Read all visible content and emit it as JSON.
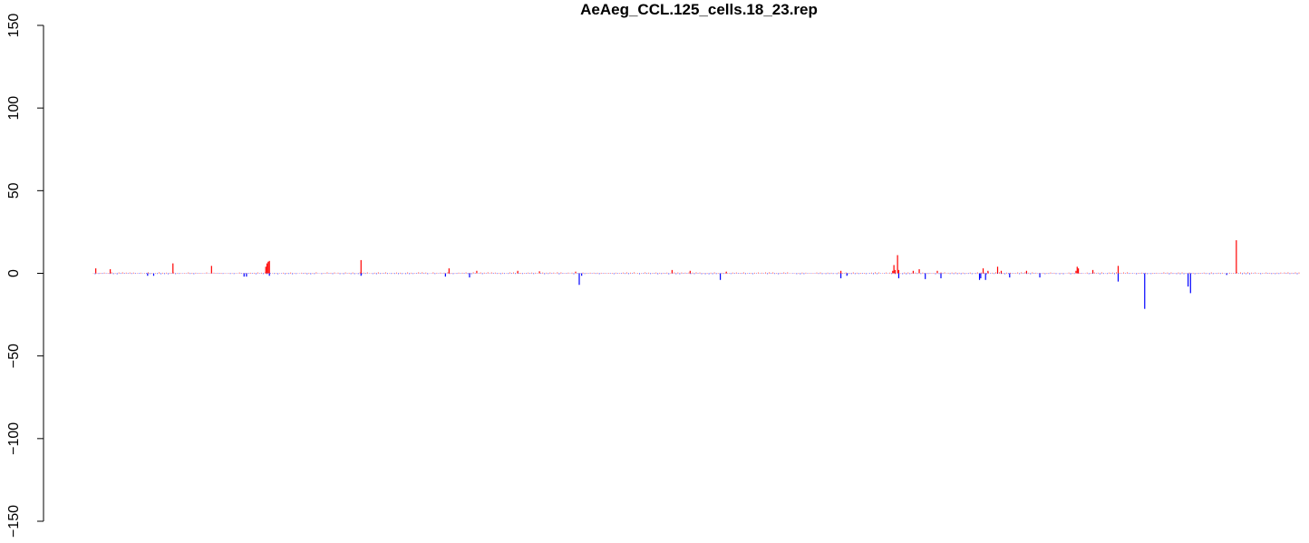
{
  "chart_data": {
    "type": "bar",
    "title": "AeAeg_CCL.125_cells.18_23.rep",
    "xlabel": "",
    "ylabel": "",
    "ylim": [
      -150,
      150
    ],
    "yticks": [
      -150,
      -100,
      -50,
      0,
      50,
      100,
      150
    ],
    "ytick_labels": [
      "−150",
      "−100",
      "−50",
      "0",
      "50",
      "100",
      "150"
    ],
    "xlim": [
      0,
      1000
    ],
    "grid": false,
    "legend": "none",
    "colors": {
      "positive": "#ff0000",
      "negative": "#0000ff",
      "axis": "#000000"
    },
    "series": [
      {
        "sign": "positive",
        "x": [
          2,
          14,
          66,
          98,
          143,
          144,
          145,
          146,
          222,
          295,
          318,
          352,
          370,
          400,
          480,
          495,
          525,
          620,
          663,
          664,
          665,
          667,
          668,
          680,
          685,
          700,
          738,
          742,
          750,
          753,
          774,
          815,
          816,
          817,
          829,
          850,
          948
        ],
        "y": [
          3,
          2.5,
          6,
          4.5,
          4,
          6,
          7,
          7.5,
          8,
          3,
          1.5,
          1.5,
          1.2,
          1,
          2,
          1.5,
          1,
          1.5,
          1.5,
          5,
          2,
          11,
          2,
          1.5,
          2.5,
          1.5,
          3,
          1.5,
          4,
          1.5,
          1.5,
          1.5,
          4,
          3,
          2,
          4.5,
          20
        ],
        "baseline_noise": 0.5
      },
      {
        "sign": "negative",
        "x": [
          45,
          50,
          125,
          127,
          146,
          222,
          292,
          312,
          403,
          405,
          520,
          620,
          625,
          668,
          690,
          703,
          735,
          736,
          740,
          760,
          785,
          850,
          872,
          908,
          910,
          940
        ],
        "y": [
          -1.5,
          -1.5,
          -2,
          -2,
          -1.5,
          -1.5,
          -2,
          -2.5,
          -7,
          -1.5,
          -4,
          -3,
          -1.5,
          -3,
          -3.5,
          -3,
          -4,
          -3,
          -4,
          -2.5,
          -2.5,
          -5,
          -21.5,
          -8,
          -12,
          -1
        ],
        "baseline_noise": -0.5
      }
    ]
  }
}
